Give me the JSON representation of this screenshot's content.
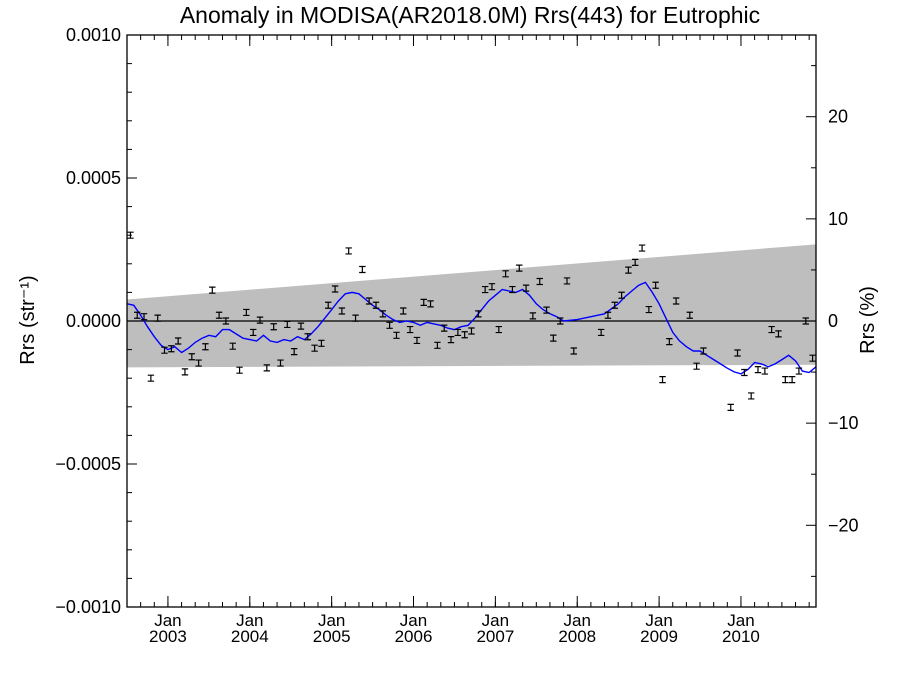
{
  "chart_data": {
    "type": "scatter",
    "title": "Anomaly in MODISA(AR2018.0M) Rrs(443) for Eutrophic",
    "ylabel_left": "Rrs (str⁻¹)",
    "ylabel_right": "Rrs (%)",
    "ylim": [
      -0.001,
      0.001
    ],
    "ylim_right": [
      -28,
      28
    ],
    "xlim": [
      2002.5,
      2010.9167
    ],
    "y_ticks": [
      {
        "value": 0.001,
        "label": "0.0010"
      },
      {
        "value": 0.0005,
        "label": "0.0005"
      },
      {
        "value": 0.0,
        "label": "0.0000"
      },
      {
        "value": -0.0005,
        "label": "−0.0005"
      },
      {
        "value": -0.001,
        "label": "−0.0010"
      }
    ],
    "y_right_ticks": [
      {
        "value": 20,
        "label": "20"
      },
      {
        "value": 10,
        "label": "10"
      },
      {
        "value": 0,
        "label": "0"
      },
      {
        "value": -10,
        "label": "−10"
      },
      {
        "value": -20,
        "label": "−20"
      }
    ],
    "x_ticks": [
      {
        "value": 2003.0,
        "month": "Jan",
        "year": "2003"
      },
      {
        "value": 2004.0,
        "month": "Jan",
        "year": "2004"
      },
      {
        "value": 2005.0,
        "month": "Jan",
        "year": "2005"
      },
      {
        "value": 2006.0,
        "month": "Jan",
        "year": "2006"
      },
      {
        "value": 2007.0,
        "month": "Jan",
        "year": "2007"
      },
      {
        "value": 2008.0,
        "month": "Jan",
        "year": "2008"
      },
      {
        "value": 2009.0,
        "month": "Jan",
        "year": "2009"
      },
      {
        "value": 2010.0,
        "month": "Jan",
        "year": "2010"
      }
    ],
    "envelope": {
      "x0": 2002.5,
      "upper0": 7.5e-05,
      "lower0": -0.000162,
      "x1": 2010.9167,
      "upper1": 0.000268,
      "lower1": -0.000153
    },
    "colors": {
      "envelope": "#bebebe",
      "running_mean": "#0000ff",
      "points": "#000000"
    },
    "points": [
      [
        2002.542,
        0.0003
      ],
      [
        2002.625,
        2e-05
      ],
      [
        2002.708,
        1.5e-05
      ],
      [
        2002.792,
        -0.0002
      ],
      [
        2002.875,
        1e-05
      ],
      [
        2002.958,
        -0.000102
      ],
      [
        2003.042,
        -9.7e-05
      ],
      [
        2003.125,
        -7e-05
      ],
      [
        2003.208,
        -0.000178
      ],
      [
        2003.292,
        -0.000125
      ],
      [
        2003.375,
        -0.000147
      ],
      [
        2003.458,
        -9e-05
      ],
      [
        2003.542,
        0.000108
      ],
      [
        2003.625,
        2e-05
      ],
      [
        2003.708,
        0.0
      ],
      [
        2003.792,
        -8.8e-05
      ],
      [
        2003.875,
        -0.000172
      ],
      [
        2003.958,
        3e-05
      ],
      [
        2004.042,
        -4e-05
      ],
      [
        2004.125,
        3e-06
      ],
      [
        2004.208,
        -0.000164
      ],
      [
        2004.292,
        -2e-05
      ],
      [
        2004.375,
        -0.000147
      ],
      [
        2004.458,
        -1.2e-05
      ],
      [
        2004.542,
        -0.000107
      ],
      [
        2004.625,
        -1.8e-05
      ],
      [
        2004.708,
        -5.5e-05
      ],
      [
        2004.792,
        -9.5e-05
      ],
      [
        2004.875,
        -7.8e-05
      ],
      [
        2004.958,
        5.5e-05
      ],
      [
        2005.042,
        0.000112
      ],
      [
        2005.125,
        3.5e-05
      ],
      [
        2005.208,
        0.000245
      ],
      [
        2005.292,
        1e-05
      ],
      [
        2005.375,
        0.00018
      ],
      [
        2005.458,
        7e-05
      ],
      [
        2005.542,
        5.5e-05
      ],
      [
        2005.625,
        2.5e-05
      ],
      [
        2005.708,
        -1.5e-05
      ],
      [
        2005.792,
        -5e-05
      ],
      [
        2005.875,
        3.5e-05
      ],
      [
        2005.958,
        -3e-05
      ],
      [
        2006.042,
        -6.8e-05
      ],
      [
        2006.125,
        6.5e-05
      ],
      [
        2006.208,
        6e-05
      ],
      [
        2006.292,
        -8.5e-05
      ],
      [
        2006.375,
        -2.5e-05
      ],
      [
        2006.458,
        -6.5e-05
      ],
      [
        2006.542,
        -4e-05
      ],
      [
        2006.625,
        -4.8e-05
      ],
      [
        2006.708,
        -3.5e-05
      ],
      [
        2006.792,
        2.5e-05
      ],
      [
        2006.875,
        0.00011
      ],
      [
        2006.958,
        0.00012
      ],
      [
        2007.042,
        -3e-05
      ],
      [
        2007.125,
        0.000165
      ],
      [
        2007.208,
        0.00011
      ],
      [
        2007.292,
        0.000185
      ],
      [
        2007.375,
        0.000115
      ],
      [
        2007.458,
        1.8e-05
      ],
      [
        2007.542,
        0.000138
      ],
      [
        2007.625,
        3.8e-05
      ],
      [
        2007.708,
        -6e-05
      ],
      [
        2007.792,
        0.0
      ],
      [
        2007.875,
        0.00014
      ],
      [
        2007.958,
        -0.000105
      ],
      [
        2008.292,
        -4e-05
      ],
      [
        2008.375,
        2e-05
      ],
      [
        2008.458,
        5.5e-05
      ],
      [
        2008.542,
        9e-05
      ],
      [
        2008.625,
        0.000178
      ],
      [
        2008.708,
        0.000205
      ],
      [
        2008.792,
        0.000255
      ],
      [
        2008.875,
        4e-05
      ],
      [
        2008.958,
        0.000125
      ],
      [
        2009.042,
        -0.000205
      ],
      [
        2009.125,
        -7.2e-05
      ],
      [
        2009.208,
        7e-05
      ],
      [
        2009.375,
        2e-05
      ],
      [
        2009.458,
        -0.000158
      ],
      [
        2009.542,
        -0.000105
      ],
      [
        2009.875,
        -0.000302
      ],
      [
        2009.958,
        -0.000112
      ],
      [
        2010.042,
        -0.00018
      ],
      [
        2010.125,
        -0.000262
      ],
      [
        2010.208,
        -0.00017
      ],
      [
        2010.292,
        -0.000175
      ],
      [
        2010.375,
        -3e-05
      ],
      [
        2010.458,
        -4.5e-05
      ],
      [
        2010.542,
        -0.000205
      ],
      [
        2010.625,
        -0.000205
      ],
      [
        2010.708,
        -0.000175
      ],
      [
        2010.792,
        0.0
      ],
      [
        2010.875,
        -0.00013
      ]
    ],
    "running_mean": [
      [
        2002.5,
        6e-05
      ],
      [
        2002.583,
        5.5e-05
      ],
      [
        2002.667,
        2e-05
      ],
      [
        2002.75,
        -2e-05
      ],
      [
        2002.833,
        -5.5e-05
      ],
      [
        2002.917,
        -8.5e-05
      ],
      [
        2003.0,
        -0.0001
      ],
      [
        2003.083,
        -9e-05
      ],
      [
        2003.167,
        -0.00011
      ],
      [
        2003.25,
        -9.5e-05
      ],
      [
        2003.333,
        -7.5e-05
      ],
      [
        2003.417,
        -6e-05
      ],
      [
        2003.5,
        -5e-05
      ],
      [
        2003.583,
        -5.5e-05
      ],
      [
        2003.667,
        -3e-05
      ],
      [
        2003.75,
        -3e-05
      ],
      [
        2003.833,
        -4.5e-05
      ],
      [
        2003.917,
        -6e-05
      ],
      [
        2004.0,
        -6.5e-05
      ],
      [
        2004.083,
        -7e-05
      ],
      [
        2004.167,
        -5e-05
      ],
      [
        2004.25,
        -7e-05
      ],
      [
        2004.333,
        -7.5e-05
      ],
      [
        2004.417,
        -6.5e-05
      ],
      [
        2004.5,
        -7e-05
      ],
      [
        2004.583,
        -5.5e-05
      ],
      [
        2004.667,
        -6.5e-05
      ],
      [
        2004.75,
        -4.5e-05
      ],
      [
        2004.833,
        -2e-05
      ],
      [
        2004.917,
        1e-05
      ],
      [
        2005.0,
        4e-05
      ],
      [
        2005.083,
        7e-05
      ],
      [
        2005.167,
        9.5e-05
      ],
      [
        2005.25,
        0.0001
      ],
      [
        2005.333,
        9.5e-05
      ],
      [
        2005.417,
        7.5e-05
      ],
      [
        2005.5,
        5.5e-05
      ],
      [
        2005.583,
        4e-05
      ],
      [
        2005.667,
        2e-05
      ],
      [
        2005.75,
        5e-06
      ],
      [
        2005.833,
        -5e-06
      ],
      [
        2005.917,
        0.0
      ],
      [
        2006.0,
        -5e-06
      ],
      [
        2006.083,
        -1.5e-05
      ],
      [
        2006.167,
        -5e-06
      ],
      [
        2006.25,
        -1e-05
      ],
      [
        2006.333,
        -1.5e-05
      ],
      [
        2006.417,
        -2.5e-05
      ],
      [
        2006.5,
        -3e-05
      ],
      [
        2006.583,
        -2e-05
      ],
      [
        2006.667,
        -1.5e-05
      ],
      [
        2006.75,
        1e-05
      ],
      [
        2006.833,
        4e-05
      ],
      [
        2006.917,
        7e-05
      ],
      [
        2007.0,
        9e-05
      ],
      [
        2007.083,
        0.00011
      ],
      [
        2007.167,
        0.000105
      ],
      [
        2007.25,
        0.0001
      ],
      [
        2007.333,
        0.00011
      ],
      [
        2007.417,
        9e-05
      ],
      [
        2007.5,
        6e-05
      ],
      [
        2007.583,
        4e-05
      ],
      [
        2007.667,
        2.5e-05
      ],
      [
        2007.75,
        1.5e-05
      ],
      [
        2007.833,
        0.0
      ],
      [
        2008.0,
        5e-06
      ],
      [
        2008.167,
        1.5e-05
      ],
      [
        2008.333,
        2.5e-05
      ],
      [
        2008.5,
        6e-05
      ],
      [
        2008.583,
        8.5e-05
      ],
      [
        2008.667,
        0.000105
      ],
      [
        2008.75,
        0.000125
      ],
      [
        2008.833,
        0.000135
      ],
      [
        2008.917,
        0.0001
      ],
      [
        2009.0,
        6e-05
      ],
      [
        2009.083,
        1e-05
      ],
      [
        2009.167,
        -4e-05
      ],
      [
        2009.25,
        -7e-05
      ],
      [
        2009.333,
        -9e-05
      ],
      [
        2009.417,
        -0.000105
      ],
      [
        2009.5,
        -0.000105
      ],
      [
        2009.583,
        -0.00012
      ],
      [
        2009.667,
        -0.000135
      ],
      [
        2009.75,
        -0.00015
      ],
      [
        2009.833,
        -0.000165
      ],
      [
        2009.917,
        -0.000178
      ],
      [
        2010.0,
        -0.000185
      ],
      [
        2010.083,
        -0.00017
      ],
      [
        2010.167,
        -0.000145
      ],
      [
        2010.25,
        -0.00015
      ],
      [
        2010.333,
        -0.00016
      ],
      [
        2010.417,
        -0.00015
      ],
      [
        2010.5,
        -0.000135
      ],
      [
        2010.583,
        -0.00012
      ],
      [
        2010.667,
        -0.00014
      ],
      [
        2010.75,
        -0.000175
      ],
      [
        2010.833,
        -0.00018
      ],
      [
        2010.917,
        -0.00016
      ]
    ]
  }
}
